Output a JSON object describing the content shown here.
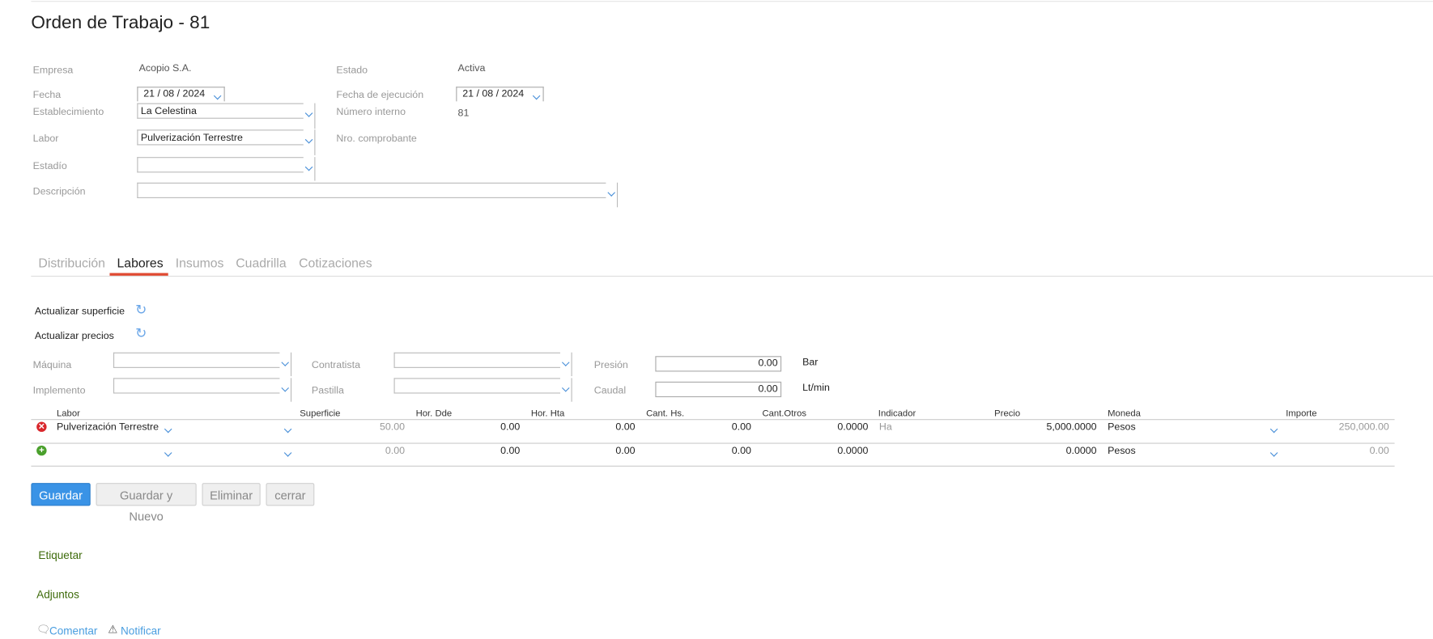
{
  "title": "Orden de Trabajo - 81",
  "form": {
    "empresa_label": "Empresa",
    "empresa": "Acopio S.A.",
    "estado_label": "Estado",
    "estado": "Activa",
    "fecha_label": "Fecha",
    "fecha": "21 / 08 /  2024",
    "fecha_ejec_label": "Fecha de ejecución",
    "fecha_ejec": "21 / 08 /  2024",
    "establecimiento_label": "Establecimiento",
    "establecimiento": "La Celestina",
    "numero_interno_label": "Número interno",
    "numero_interno": "81",
    "labor_label": "Labor",
    "labor": "Pulverización Terrestre",
    "nro_comprobante_label": "Nro. comprobante",
    "estadio_label": "Estadío",
    "estadio": "",
    "descripcion_label": "Descripción",
    "descripcion": ""
  },
  "tabs": [
    {
      "label": "Distribución"
    },
    {
      "label": "Labores",
      "active": true
    },
    {
      "label": "Insumos"
    },
    {
      "label": "Cuadrilla"
    },
    {
      "label": "Cotizaciones"
    }
  ],
  "accent": "#e04a32",
  "actions": {
    "actualizar_superficie": "Actualizar superficie",
    "actualizar_precios": "Actualizar precios"
  },
  "labores": {
    "maquina_label": "Máquina",
    "implemento_label": "Implemento",
    "contratista_label": "Contratista",
    "pastilla_label": "Pastilla",
    "presion_label": "Presión",
    "presion": "0.00",
    "presion_unit": "Bar",
    "caudal_label": "Caudal",
    "caudal": "0.00",
    "caudal_unit": "Lt/min"
  },
  "table": {
    "headers": [
      "Labor",
      "Superficie",
      "Hor. Dde",
      "Hor. Hta",
      "Cant. Hs.",
      "Cant.Otros",
      "Indicador",
      "Precio",
      "Moneda",
      "Importe"
    ],
    "rows": [
      {
        "icon": "remove-icon",
        "labor": "Pulverización Terrestre",
        "superficie": "50.00",
        "hor_dde": "0.00",
        "hor_hta": "0.00",
        "cant_hs": "0.00",
        "cant_otros": "0.0000",
        "indicador": "Ha",
        "precio": "5,000.0000",
        "moneda": "Pesos",
        "importe": "250,000.00"
      },
      {
        "icon": "add-icon",
        "labor": "",
        "superficie": "0.00",
        "hor_dde": "0.00",
        "hor_hta": "0.00",
        "cant_hs": "0.00",
        "cant_otros": "0.0000",
        "indicador": "",
        "precio": "0.0000",
        "moneda": "Pesos",
        "importe": "0.00"
      }
    ]
  },
  "buttons": {
    "guardar": "Guardar",
    "guardar_nuevo": "Guardar y Nuevo",
    "eliminar": "Eliminar",
    "cerrar": "cerrar"
  },
  "footer": {
    "etiquetar": "Etiquetar",
    "adjuntos": "Adjuntos",
    "comentar": "Comentar",
    "notificar": "Notificar"
  }
}
